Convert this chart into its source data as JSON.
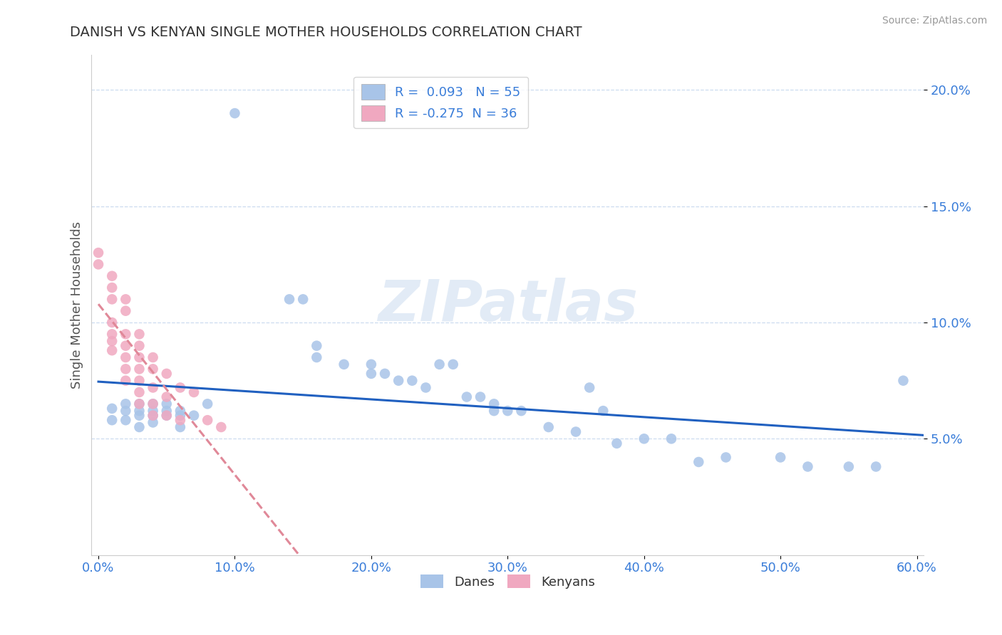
{
  "title": "DANISH VS KENYAN SINGLE MOTHER HOUSEHOLDS CORRELATION CHART",
  "source": "Source: ZipAtlas.com",
  "ylabel": "Single Mother Households",
  "xlim": [
    -0.005,
    0.605
  ],
  "ylim": [
    0.0,
    0.215
  ],
  "xticks": [
    0.0,
    0.1,
    0.2,
    0.3,
    0.4,
    0.5,
    0.6
  ],
  "xtick_labels": [
    "0.0%",
    "10.0%",
    "20.0%",
    "30.0%",
    "40.0%",
    "50.0%",
    "60.0%"
  ],
  "yticks": [
    0.05,
    0.1,
    0.15,
    0.2
  ],
  "ytick_labels": [
    "5.0%",
    "10.0%",
    "15.0%",
    "20.0%"
  ],
  "r_danes": 0.093,
  "n_danes": 55,
  "r_kenyans": -0.275,
  "n_kenyans": 36,
  "danes_color": "#a8c4e8",
  "kenyans_color": "#f0a8c0",
  "danes_line_color": "#2060c0",
  "kenyans_line_color": "#e08898",
  "watermark_color": "#d0dff0",
  "danes_x": [
    0.01,
    0.01,
    0.02,
    0.02,
    0.02,
    0.03,
    0.03,
    0.03,
    0.03,
    0.04,
    0.04,
    0.04,
    0.04,
    0.05,
    0.05,
    0.05,
    0.06,
    0.06,
    0.06,
    0.07,
    0.08,
    0.1,
    0.14,
    0.15,
    0.16,
    0.16,
    0.18,
    0.2,
    0.2,
    0.21,
    0.22,
    0.23,
    0.24,
    0.25,
    0.26,
    0.27,
    0.28,
    0.29,
    0.29,
    0.3,
    0.31,
    0.33,
    0.35,
    0.36,
    0.37,
    0.38,
    0.4,
    0.42,
    0.44,
    0.46,
    0.5,
    0.52,
    0.55,
    0.57,
    0.59
  ],
  "danes_y": [
    0.063,
    0.058,
    0.065,
    0.062,
    0.058,
    0.065,
    0.062,
    0.06,
    0.055,
    0.065,
    0.062,
    0.06,
    0.057,
    0.065,
    0.062,
    0.06,
    0.062,
    0.06,
    0.055,
    0.06,
    0.065,
    0.19,
    0.11,
    0.11,
    0.09,
    0.085,
    0.082,
    0.082,
    0.078,
    0.078,
    0.075,
    0.075,
    0.072,
    0.082,
    0.082,
    0.068,
    0.068,
    0.065,
    0.062,
    0.062,
    0.062,
    0.055,
    0.053,
    0.072,
    0.062,
    0.048,
    0.05,
    0.05,
    0.04,
    0.042,
    0.042,
    0.038,
    0.038,
    0.038,
    0.075
  ],
  "kenyans_x": [
    0.0,
    0.0,
    0.01,
    0.01,
    0.01,
    0.01,
    0.01,
    0.01,
    0.01,
    0.02,
    0.02,
    0.02,
    0.02,
    0.02,
    0.02,
    0.02,
    0.03,
    0.03,
    0.03,
    0.03,
    0.03,
    0.03,
    0.03,
    0.04,
    0.04,
    0.04,
    0.04,
    0.04,
    0.05,
    0.05,
    0.05,
    0.06,
    0.06,
    0.07,
    0.08,
    0.09
  ],
  "kenyans_y": [
    0.13,
    0.125,
    0.12,
    0.115,
    0.11,
    0.1,
    0.095,
    0.092,
    0.088,
    0.11,
    0.105,
    0.095,
    0.09,
    0.085,
    0.08,
    0.075,
    0.095,
    0.09,
    0.085,
    0.08,
    0.075,
    0.07,
    0.065,
    0.085,
    0.08,
    0.072,
    0.065,
    0.06,
    0.078,
    0.068,
    0.06,
    0.072,
    0.058,
    0.07,
    0.058,
    0.055
  ]
}
